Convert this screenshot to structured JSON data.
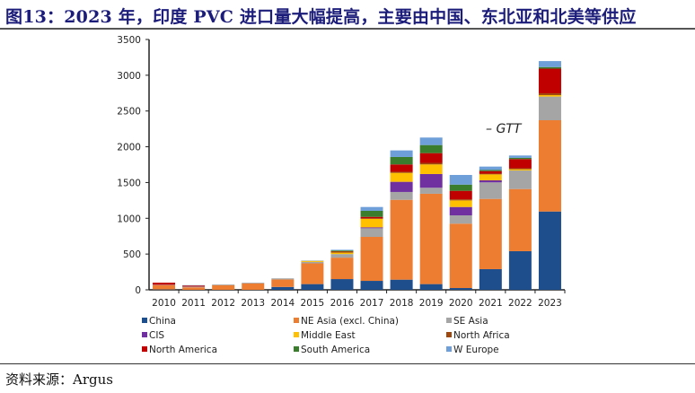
{
  "title": "图13：2023 年，印度 PVC 进口量大幅提高，主要由中国、东北亚和北美等供应",
  "source": "资料来源：Argus",
  "chart_data": {
    "type": "bar",
    "stacked": true,
    "title": "",
    "xlabel": "",
    "ylabel": "",
    "ylim": [
      0,
      3500
    ],
    "yticks": [
      0,
      500,
      1000,
      1500,
      2000,
      2500,
      3000,
      3500
    ],
    "grid": false,
    "legend_position": "bottom",
    "annotation": "– GTT",
    "categories": [
      "2010",
      "2011",
      "2012",
      "2013",
      "2014",
      "2015",
      "2016",
      "2017",
      "2018",
      "2019",
      "2020",
      "2021",
      "2022",
      "2023"
    ],
    "series": [
      {
        "name": "China",
        "color": "#1f4e8c",
        "values": [
          5,
          0,
          0,
          0,
          40,
          80,
          150,
          125,
          142,
          80,
          25,
          289,
          540,
          1095
        ]
      },
      {
        "name": "NE Asia (excl. China)",
        "color": "#ed7d31",
        "values": [
          60,
          35,
          65,
          90,
          105,
          290,
          300,
          615,
          1116,
          1263,
          900,
          982,
          869,
          1276
        ]
      },
      {
        "name": "SE Asia",
        "color": "#a5a5a5",
        "values": [
          5,
          10,
          10,
          10,
          15,
          20,
          50,
          121,
          110,
          84,
          116,
          231,
          260,
          331
        ]
      },
      {
        "name": "CIS",
        "color": "#7030a0",
        "values": [
          0,
          0,
          0,
          0,
          0,
          0,
          0,
          13,
          142,
          192,
          117,
          29,
          0,
          0
        ]
      },
      {
        "name": "Middle East",
        "color": "#ffc000",
        "values": [
          0,
          0,
          0,
          0,
          0,
          15,
          20,
          117,
          125,
          134,
          92,
          83,
          16,
          20
        ]
      },
      {
        "name": "North Africa",
        "color": "#9e480e",
        "values": [
          0,
          0,
          0,
          0,
          0,
          0,
          20,
          10,
          15,
          22,
          15,
          11,
          15,
          25
        ]
      },
      {
        "name": "North America",
        "color": "#c00000",
        "values": [
          30,
          15,
          0,
          0,
          0,
          0,
          0,
          19,
          103,
          136,
          119,
          35,
          128,
          345
        ]
      },
      {
        "name": "South America",
        "color": "#3a7d2c",
        "values": [
          0,
          0,
          0,
          0,
          0,
          0,
          10,
          84,
          104,
          113,
          87,
          15,
          17,
          22
        ]
      },
      {
        "name": "W Europe",
        "color": "#6f9fd8",
        "values": [
          0,
          5,
          0,
          0,
          0,
          5,
          10,
          54,
          92,
          105,
          135,
          48,
          33,
          84
        ]
      }
    ]
  }
}
